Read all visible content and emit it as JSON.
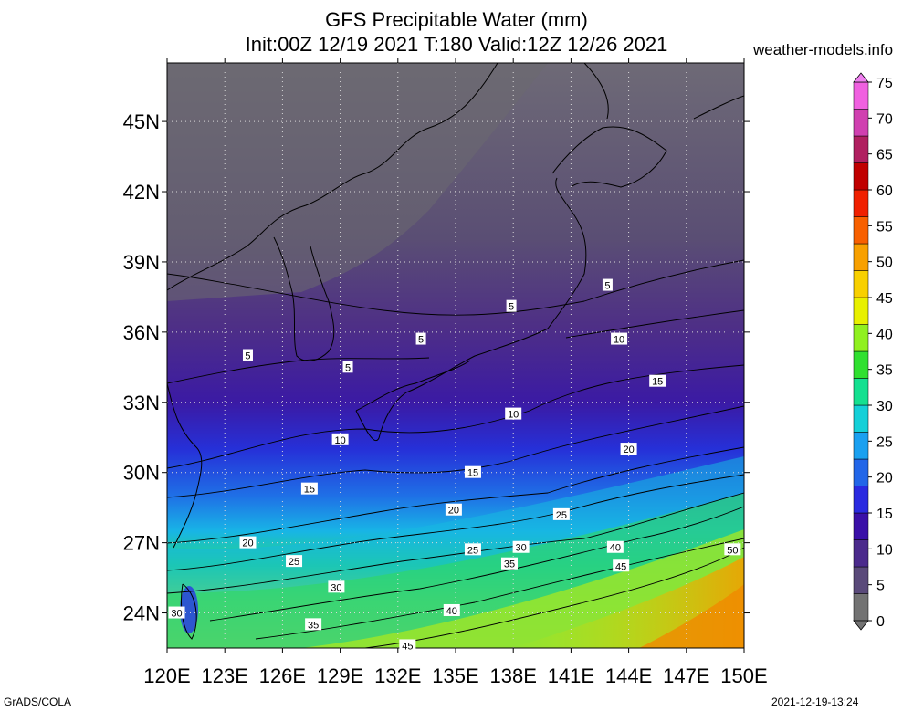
{
  "title": {
    "line1": "GFS Precipitable Water (mm)",
    "line2": "Init:00Z 12/19 2021 T:180 Valid:12Z 12/26 2021"
  },
  "source": "weather-models.info",
  "footer": {
    "left": "GrADS/COLA",
    "right": "2021-12-19-13:24"
  },
  "map": {
    "lon_range": [
      120,
      150
    ],
    "lat_range": [
      22.5,
      47.5
    ],
    "lon_ticks": [
      "120E",
      "123E",
      "126E",
      "129E",
      "132E",
      "135E",
      "138E",
      "141E",
      "144E",
      "147E",
      "150E"
    ],
    "lat_ticks": [
      "24N",
      "27N",
      "30N",
      "33N",
      "36N",
      "39N",
      "42N",
      "45N"
    ],
    "lat_tick_values": [
      24,
      27,
      30,
      33,
      36,
      39,
      42,
      45
    ],
    "grid": "dotted",
    "contour_labels": [
      {
        "text": "5",
        "lon": 124.2,
        "lat": 35.0
      },
      {
        "text": "5",
        "lon": 129.4,
        "lat": 34.5
      },
      {
        "text": "5",
        "lon": 133.2,
        "lat": 35.7
      },
      {
        "text": "5",
        "lon": 137.9,
        "lat": 37.1
      },
      {
        "text": "5",
        "lon": 142.9,
        "lat": 38.0
      },
      {
        "text": "10",
        "lon": 143.5,
        "lat": 35.7
      },
      {
        "text": "10",
        "lon": 138.0,
        "lat": 32.5
      },
      {
        "text": "10",
        "lon": 129.0,
        "lat": 31.4
      },
      {
        "text": "15",
        "lon": 145.5,
        "lat": 33.9
      },
      {
        "text": "15",
        "lon": 127.4,
        "lat": 29.3
      },
      {
        "text": "15",
        "lon": 135.9,
        "lat": 30.0
      },
      {
        "text": "20",
        "lon": 144.0,
        "lat": 31.0
      },
      {
        "text": "20",
        "lon": 134.9,
        "lat": 28.4
      },
      {
        "text": "20",
        "lon": 124.2,
        "lat": 27.0
      },
      {
        "text": "25",
        "lon": 140.5,
        "lat": 28.2
      },
      {
        "text": "25",
        "lon": 135.9,
        "lat": 26.7
      },
      {
        "text": "25",
        "lon": 126.6,
        "lat": 26.2
      },
      {
        "text": "30",
        "lon": 138.4,
        "lat": 26.8
      },
      {
        "text": "30",
        "lon": 128.8,
        "lat": 25.1
      },
      {
        "text": "30",
        "lon": 120.5,
        "lat": 24.0
      },
      {
        "text": "35",
        "lon": 137.8,
        "lat": 26.1
      },
      {
        "text": "35",
        "lon": 127.6,
        "lat": 23.5
      },
      {
        "text": "40",
        "lon": 143.3,
        "lat": 26.8
      },
      {
        "text": "40",
        "lon": 134.8,
        "lat": 24.1
      },
      {
        "text": "45",
        "lon": 143.6,
        "lat": 26.0
      },
      {
        "text": "45",
        "lon": 132.5,
        "lat": 22.6
      },
      {
        "text": "50",
        "lon": 149.4,
        "lat": 26.7
      }
    ]
  },
  "colorbar": {
    "labels": [
      "0",
      "5",
      "10",
      "15",
      "20",
      "25",
      "30",
      "35",
      "40",
      "45",
      "50",
      "55",
      "60",
      "65",
      "70",
      "75"
    ],
    "colors": [
      "#737373",
      "#5a4a7a",
      "#4b2a8c",
      "#3a10a8",
      "#2a2ae0",
      "#2266e8",
      "#1aa0f0",
      "#14d0d8",
      "#14e090",
      "#30e030",
      "#90f020",
      "#e8f000",
      "#f8d000",
      "#f8a000",
      "#f86000",
      "#f02000",
      "#c00000",
      "#b02060",
      "#d040b0",
      "#f060e0"
    ]
  }
}
